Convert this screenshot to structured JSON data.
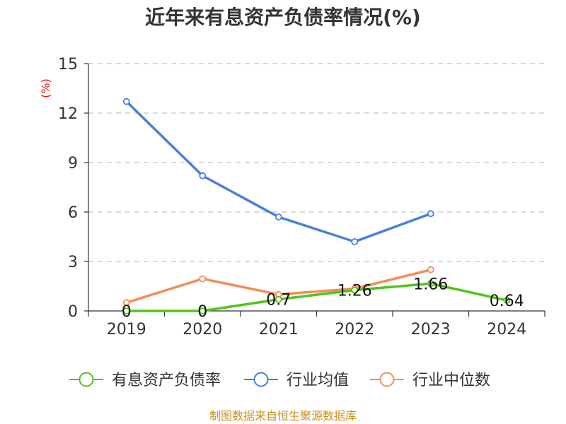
{
  "title": "近年来有息资产负债率情况(%)",
  "y_unit": "(%)",
  "source": "制图数据来自恒生聚源数据库",
  "chart_data": {
    "type": "line",
    "title": "近年来有息资产负债率情况(%)",
    "xlabel": "",
    "ylabel": "(%)",
    "categories": [
      "2019",
      "2020",
      "2021",
      "2022",
      "2023",
      "2024"
    ],
    "ylim": [
      0,
      15
    ],
    "yticks": [
      0,
      3,
      6,
      9,
      12,
      15
    ],
    "grid": true,
    "legend_position": "bottom",
    "series": [
      {
        "name": "有息资产负债率",
        "color": "#52c41a",
        "values": [
          0,
          0,
          0.7,
          1.26,
          1.66,
          0.64
        ],
        "labels": [
          "0",
          "0",
          "0.7",
          "1.26",
          "1.66",
          "0.64"
        ]
      },
      {
        "name": "行业均值",
        "color": "#4a7fdc",
        "values": [
          12.7,
          8.2,
          5.7,
          4.2,
          5.9,
          null
        ]
      },
      {
        "name": "行业中位数",
        "color": "#f48c5b",
        "values": [
          0.5,
          1.95,
          1.0,
          1.35,
          2.5,
          null
        ]
      }
    ]
  }
}
